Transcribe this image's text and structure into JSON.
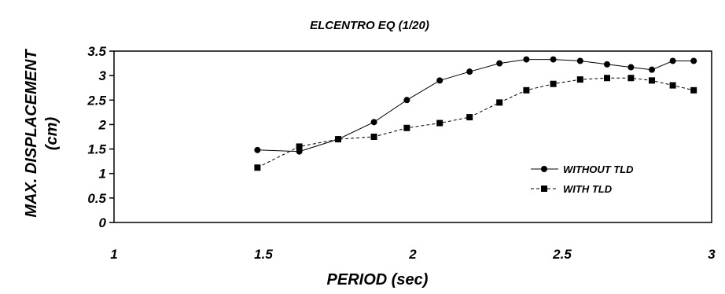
{
  "chart_data": {
    "type": "line",
    "title": "ELCENTRO  EQ (1/20)",
    "xlabel": "PERIOD (sec)",
    "ylabel_line1": "MAX. DISPLACEMENT",
    "ylabel_line2": "(cm)",
    "xlim": [
      1,
      3
    ],
    "ylim": [
      0,
      3.5
    ],
    "x_ticks": [
      "1",
      "1.5",
      "2",
      "2.5",
      "3"
    ],
    "y_ticks": [
      "0",
      "0.5",
      "1",
      "1.5",
      "2",
      "2.5",
      "3",
      "3.5"
    ],
    "x_tick_values": [
      1,
      1.5,
      2,
      2.5,
      3
    ],
    "y_tick_values": [
      0,
      0.5,
      1,
      1.5,
      2,
      2.5,
      3,
      3.5
    ],
    "legend_position": "right",
    "series": [
      {
        "name": "WITHOUT TLD",
        "marker": "circle",
        "line": "solid",
        "color": "#000000",
        "x": [
          1.48,
          1.62,
          1.75,
          1.87,
          1.98,
          2.09,
          2.19,
          2.29,
          2.38,
          2.47,
          2.56,
          2.65,
          2.73,
          2.8,
          2.87,
          2.94
        ],
        "y": [
          1.48,
          1.45,
          1.7,
          2.05,
          2.5,
          2.9,
          3.08,
          3.25,
          3.33,
          3.33,
          3.3,
          3.23,
          3.17,
          3.12,
          3.3,
          3.3
        ]
      },
      {
        "name": "WITH TLD",
        "marker": "square",
        "line": "dashed",
        "color": "#000000",
        "x": [
          1.48,
          1.62,
          1.75,
          1.87,
          1.98,
          2.09,
          2.19,
          2.29,
          2.38,
          2.47,
          2.56,
          2.65,
          2.73,
          2.8,
          2.87,
          2.94
        ],
        "y": [
          1.12,
          1.55,
          1.7,
          1.75,
          1.93,
          2.03,
          2.15,
          2.45,
          2.7,
          2.83,
          2.92,
          2.95,
          2.95,
          2.9,
          2.8,
          2.7
        ]
      }
    ]
  }
}
